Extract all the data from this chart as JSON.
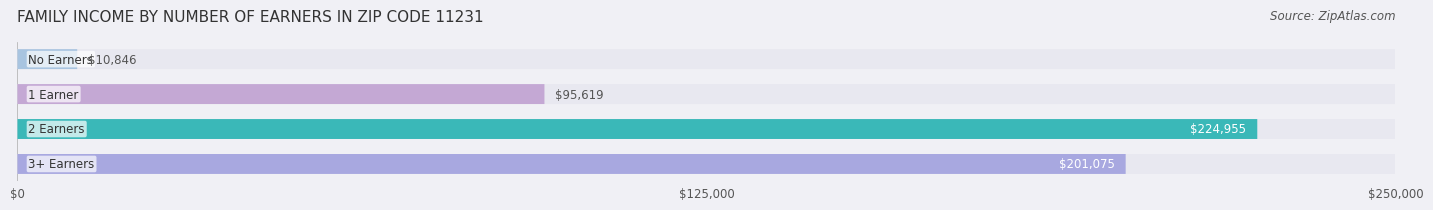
{
  "title": "FAMILY INCOME BY NUMBER OF EARNERS IN ZIP CODE 11231",
  "source": "Source: ZipAtlas.com",
  "categories": [
    "No Earners",
    "1 Earner",
    "2 Earners",
    "3+ Earners"
  ],
  "values": [
    10846,
    95619,
    224955,
    201075
  ],
  "bar_colors": [
    "#a8c4e0",
    "#c4a8d4",
    "#3ab8b8",
    "#a8a8e0"
  ],
  "bar_edge_colors": [
    "#a8c4e0",
    "#c4a8d4",
    "#3ab8b8",
    "#a8a8e0"
  ],
  "label_colors": [
    "#555555",
    "#555555",
    "#ffffff",
    "#ffffff"
  ],
  "value_labels": [
    "$10,846",
    "$95,619",
    "$224,955",
    "$201,075"
  ],
  "xlim": [
    0,
    250000
  ],
  "xticks": [
    0,
    125000,
    250000
  ],
  "xtick_labels": [
    "$0",
    "$125,000",
    "$250,000"
  ],
  "background_color": "#f0f0f5",
  "bar_bg_color": "#e8e8f0",
  "title_fontsize": 11,
  "source_fontsize": 8.5,
  "label_fontsize": 8.5,
  "value_fontsize": 8.5,
  "tick_fontsize": 8.5
}
